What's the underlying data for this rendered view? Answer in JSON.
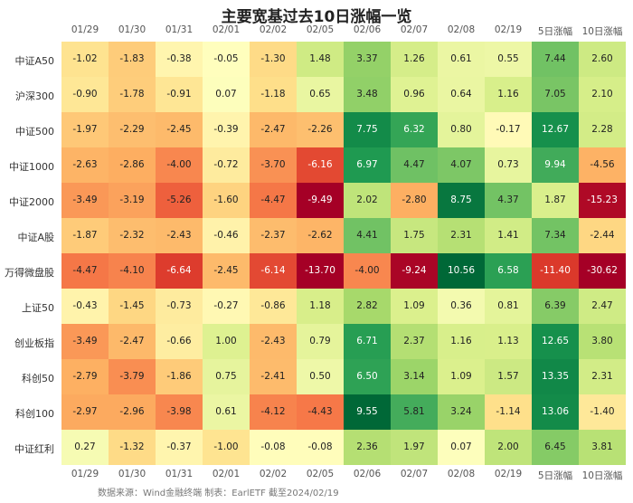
{
  "chart_data": {
    "type": "heatmap",
    "title": "主要宽基过去10日涨幅一览",
    "columns": [
      "01/29",
      "01/30",
      "01/31",
      "02/01",
      "02/02",
      "02/05",
      "02/06",
      "02/07",
      "02/08",
      "02/19",
      "5日涨幅",
      "10日涨幅"
    ],
    "rows": [
      "中证A50",
      "沪深300",
      "中证500",
      "中证1000",
      "中证2000",
      "中证A股",
      "万得微盘股",
      "上证50",
      "创业板指",
      "科创50",
      "科创100",
      "中证红利"
    ],
    "values": [
      [
        -1.02,
        -1.83,
        -0.38,
        -0.05,
        -1.3,
        1.48,
        3.37,
        1.26,
        0.61,
        0.55,
        7.44,
        2.6
      ],
      [
        -0.9,
        -1.78,
        -0.91,
        0.07,
        -1.18,
        0.65,
        3.48,
        0.96,
        0.64,
        1.16,
        7.05,
        2.1
      ],
      [
        -1.97,
        -2.29,
        -2.45,
        -0.39,
        -2.47,
        -2.26,
        7.75,
        6.32,
        0.8,
        -0.17,
        12.67,
        2.28
      ],
      [
        -2.63,
        -2.86,
        -4.0,
        -0.72,
        -3.7,
        -6.16,
        6.97,
        4.47,
        4.07,
        0.73,
        9.94,
        -4.56
      ],
      [
        -3.49,
        -3.19,
        -5.26,
        -1.6,
        -4.47,
        -9.49,
        2.02,
        -2.8,
        8.75,
        4.37,
        1.87,
        -15.23
      ],
      [
        -1.87,
        -2.32,
        -2.43,
        -0.46,
        -2.37,
        -2.62,
        4.41,
        1.75,
        2.31,
        1.41,
        7.34,
        -2.44
      ],
      [
        -4.47,
        -4.1,
        -6.64,
        -2.45,
        -6.14,
        -13.7,
        -4.0,
        -9.24,
        10.56,
        6.58,
        -11.4,
        -30.62
      ],
      [
        -0.43,
        -1.45,
        -0.73,
        -0.27,
        -0.86,
        1.18,
        2.82,
        1.09,
        0.36,
        0.81,
        6.39,
        2.47
      ],
      [
        -3.49,
        -2.47,
        -0.66,
        1.0,
        -2.43,
        0.79,
        6.71,
        2.37,
        1.16,
        1.13,
        12.65,
        3.8
      ],
      [
        -2.79,
        -3.79,
        -1.86,
        0.75,
        -2.41,
        0.5,
        6.5,
        3.14,
        1.09,
        1.57,
        13.35,
        2.31
      ],
      [
        -2.97,
        -2.96,
        -3.98,
        0.61,
        -4.12,
        -4.43,
        9.55,
        5.81,
        3.24,
        -1.14,
        13.06,
        -1.4
      ],
      [
        0.27,
        -1.32,
        -0.37,
        -1.0,
        -0.08,
        -0.08,
        2.36,
        1.97,
        0.07,
        2.0,
        6.45,
        3.81
      ]
    ],
    "color_scale": {
      "negative": "#a50026",
      "neutral": "#ffffbf",
      "positive": "#006837"
    },
    "source": "数据来源：Wind金融终端 制表：EarlETF 截至2024/02/19"
  }
}
